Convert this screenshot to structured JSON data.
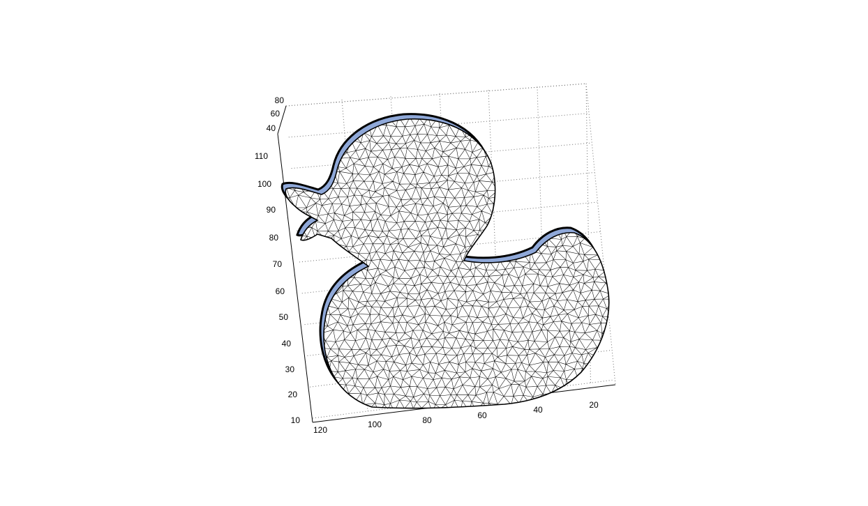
{
  "chart_data": {
    "type": "surface-mesh",
    "title": "",
    "xlabel": "",
    "ylabel": "",
    "zlabel": "",
    "x_ticks": [
      "120",
      "100",
      "80",
      "60",
      "40",
      "20"
    ],
    "y_ticks": [
      "10",
      "20",
      "30",
      "40",
      "50",
      "60",
      "70",
      "80",
      "90",
      "100",
      "110"
    ],
    "z_ticks": [
      "40",
      "60",
      "80"
    ],
    "grid": true,
    "colors": {
      "edge": "#000000",
      "face": "#ffffff",
      "shade": "#8fa8d8",
      "grid": "#6e6e6e"
    }
  }
}
